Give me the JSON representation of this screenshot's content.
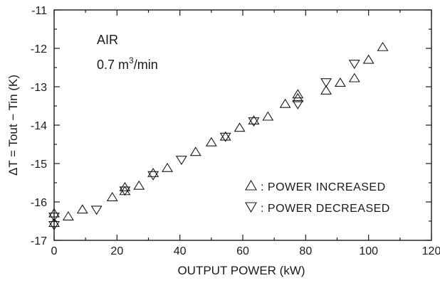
{
  "chart_data": {
    "type": "scatter",
    "xlabel": "OUTPUT  POWER  (kW)",
    "ylabel": "ΔT = Tout − Tin  (K)",
    "xlim": [
      0,
      120
    ],
    "ylim": [
      -17,
      -11
    ],
    "xticks": [
      0,
      20,
      40,
      60,
      80,
      100,
      120
    ],
    "yticks": [
      -17,
      -16,
      -15,
      -14,
      -13,
      -12,
      -11
    ],
    "xtick_labels": [
      "0",
      "20",
      "40",
      "60",
      "80",
      "100",
      "120"
    ],
    "ytick_labels": [
      "-17",
      "-16",
      "-15",
      "-14",
      "-13",
      "-12",
      "-11"
    ],
    "grid": false,
    "legend_position": "bottom-right",
    "annotations": {
      "line1": "AIR",
      "line2_value": "0.7 m",
      "line2_sup": "3",
      "line2_unit": "/min"
    },
    "series": [
      {
        "name": ": POWER  INCREASED",
        "marker": "triangle-up",
        "x": [
          0,
          0,
          4.5,
          9,
          18.5,
          22.5,
          22.5,
          27,
          31.5,
          36,
          45,
          50,
          54.5,
          59,
          63.5,
          68,
          73.5,
          77.5,
          77.5,
          86.5,
          91,
          95.5,
          100,
          104.5
        ],
        "y": [
          -16.3,
          -16.55,
          -16.38,
          -16.2,
          -15.88,
          -15.62,
          -15.72,
          -15.58,
          -15.25,
          -15.12,
          -14.7,
          -14.45,
          -14.3,
          -14.07,
          -13.88,
          -13.78,
          -13.45,
          -13.3,
          -13.2,
          -13.1,
          -12.9,
          -12.78,
          -12.3,
          -11.97
        ]
      },
      {
        "name": ": POWER  DECREASED",
        "marker": "triangle-down",
        "x": [
          0,
          0,
          13.5,
          22.5,
          31.5,
          40.5,
          54.5,
          63.5,
          77.5,
          86.5,
          95.5
        ],
        "y": [
          -16.38,
          -16.6,
          -16.2,
          -15.7,
          -15.3,
          -14.9,
          -14.3,
          -13.9,
          -13.45,
          -12.88,
          -12.4
        ]
      }
    ]
  }
}
